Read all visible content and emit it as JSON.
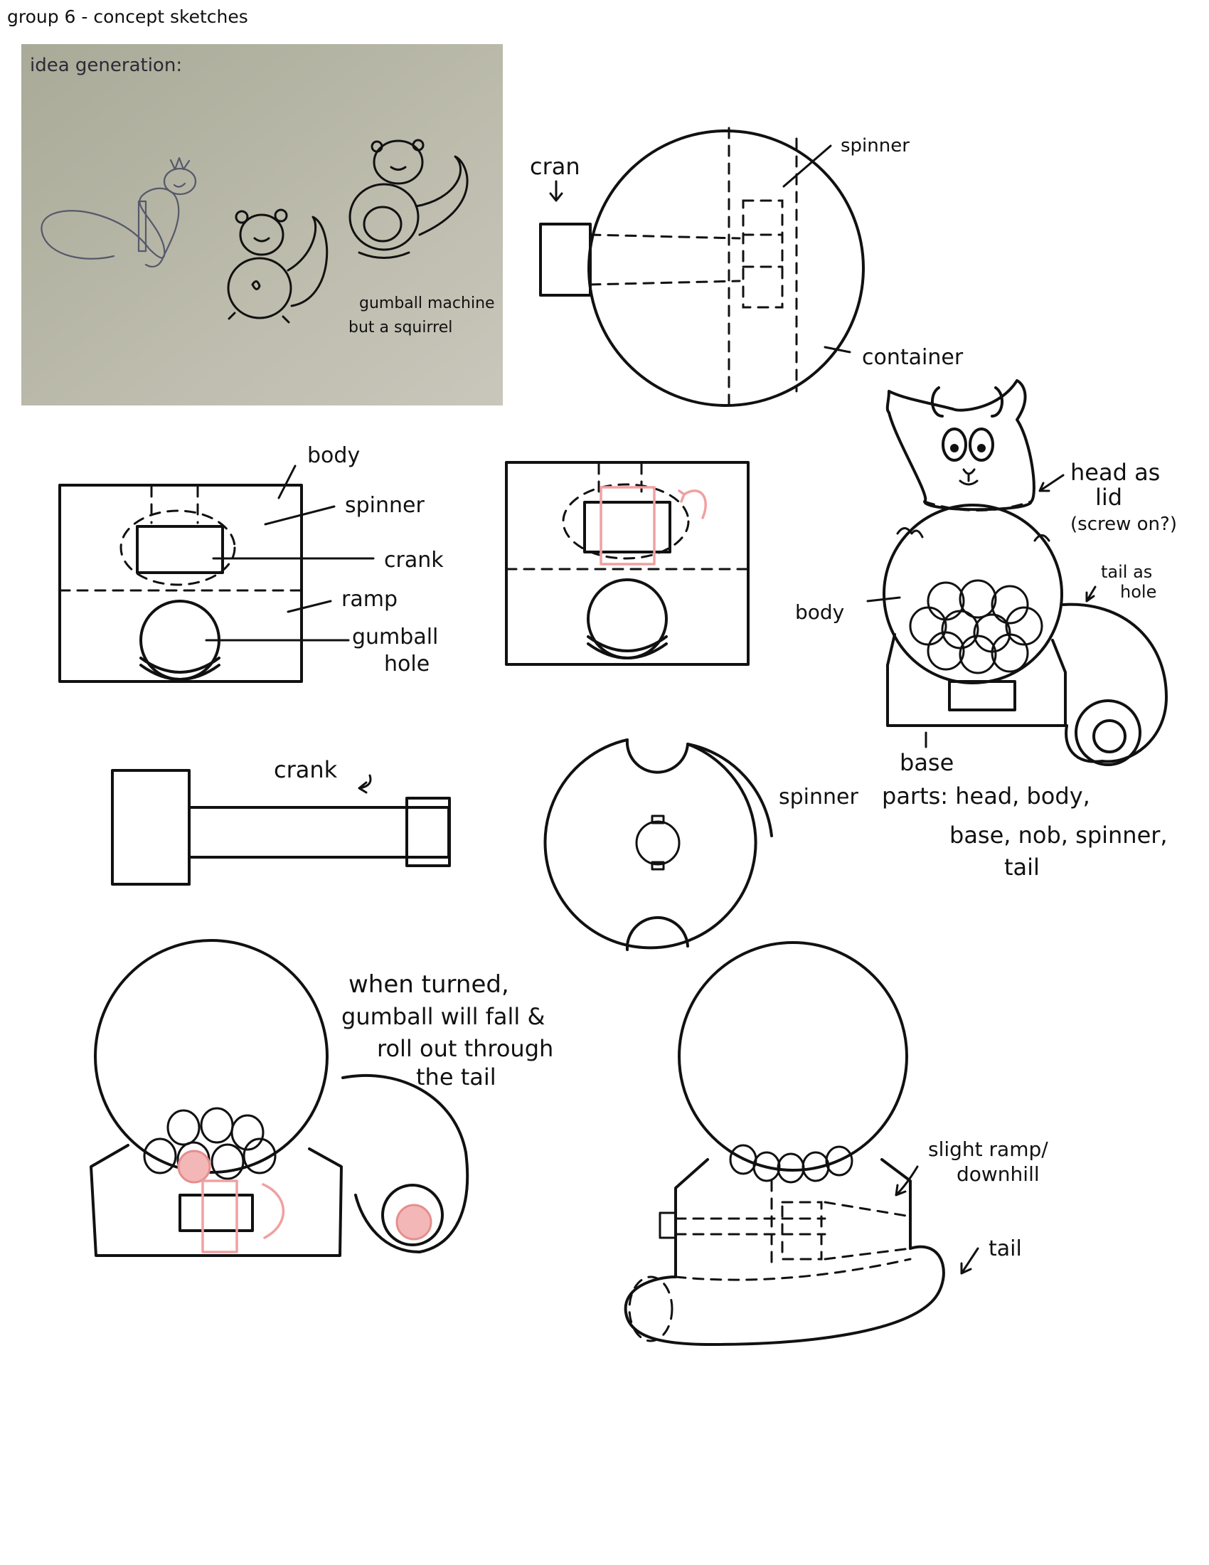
{
  "page_title": "group 6 - concept sketches",
  "photo": {
    "heading": "idea generation:",
    "caption_line1": "gumball machine",
    "caption_line2": "but a squirrel"
  },
  "top_diagram": {
    "crank_label": "cran",
    "spinner_label": "spinner",
    "container_label": "container"
  },
  "front_view": {
    "body": "body",
    "spinner": "spinner",
    "crank": "crank",
    "ramp": "ramp",
    "gumball_hole_line1": "gumball",
    "gumball_hole_line2": "hole"
  },
  "squirrel": {
    "head_line1": "head as",
    "head_line2": "lid",
    "head_line3": "(screw on?)",
    "tail_line1": "tail as",
    "tail_line2": "hole",
    "body": "body",
    "base": "base",
    "parts_line1": "parts: head, body,",
    "parts_line2": "base, nob, spinner,",
    "parts_line3": "tail"
  },
  "crank_part": {
    "label": "crank"
  },
  "spinner_part": {
    "label": "spinner"
  },
  "turn_note": {
    "line1": "when turned,",
    "line2": "gumball will fall &",
    "line3": "roll out through",
    "line4": "the tail"
  },
  "side_view": {
    "ramp_line1": "slight ramp/",
    "ramp_line2": "downhill",
    "tail": "tail"
  },
  "colors": {
    "ink": "#111111",
    "accent_pink": "#f0a0a0",
    "photo_bg": "#bcbbad"
  }
}
